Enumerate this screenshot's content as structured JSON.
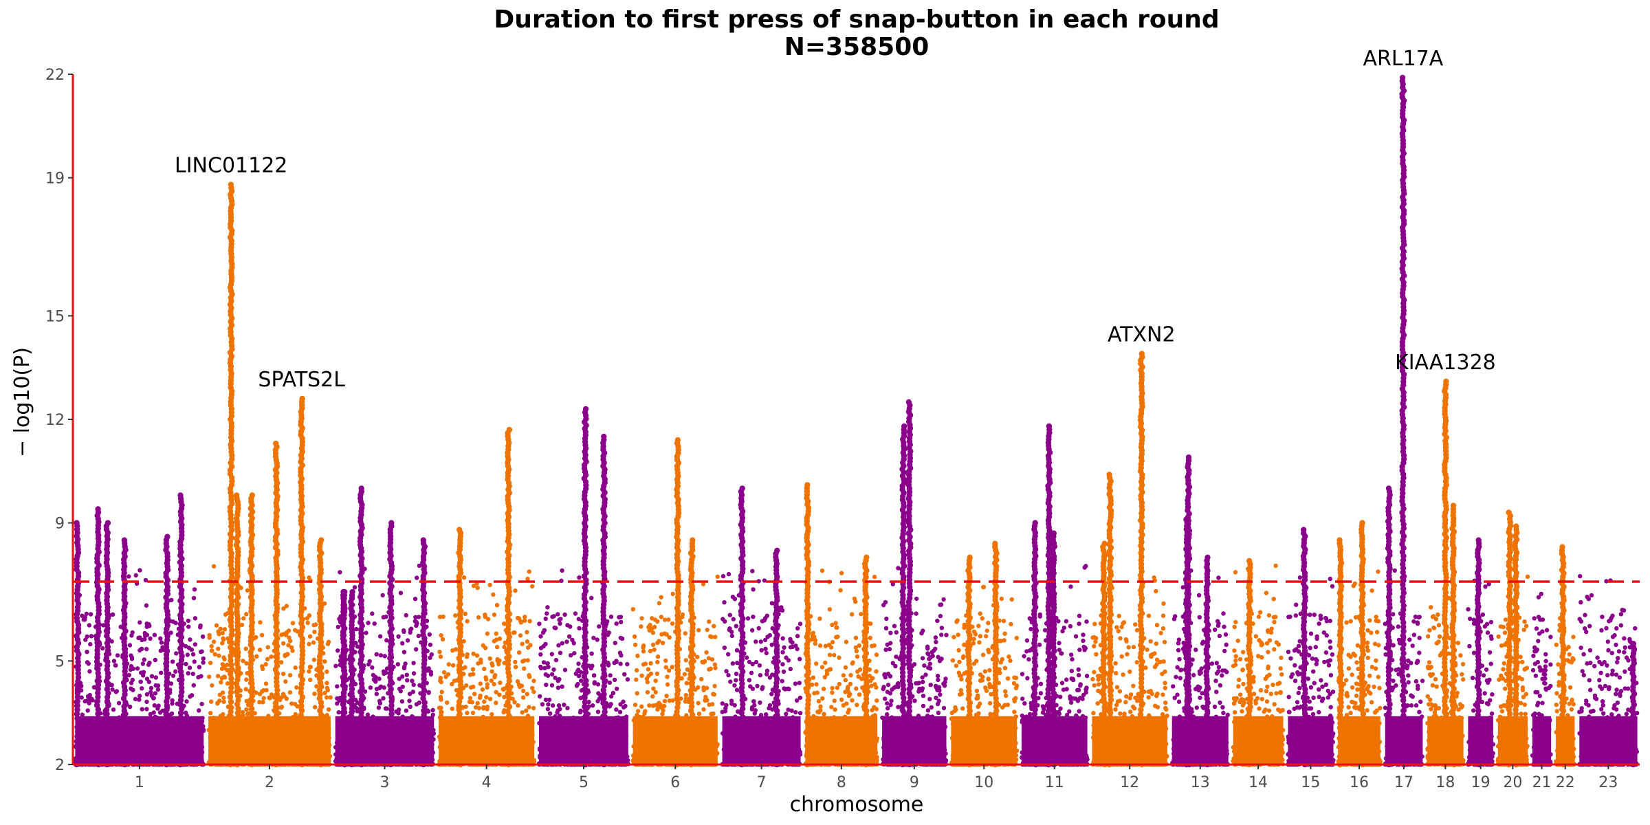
{
  "chart_data": {
    "type": "scatter",
    "subtype": "manhattan",
    "title": "Duration to first press of snap-button in each round",
    "subtitle": "N=358500",
    "xlabel": "chromosome",
    "ylabel": "− log10(P)",
    "ylim": [
      2,
      22
    ],
    "yticks": [
      2,
      5,
      9,
      12,
      15,
      19,
      22
    ],
    "significance_threshold": 7.3,
    "colors": {
      "odd": "#8B008B",
      "even": "#EE7300",
      "threshold": "#ee1111",
      "axis": "#ee1111"
    },
    "chromosomes": [
      {
        "label": "1",
        "start": 0.0,
        "end": 8.5
      },
      {
        "label": "2",
        "start": 8.5,
        "end": 16.6
      },
      {
        "label": "3",
        "start": 16.6,
        "end": 23.2
      },
      {
        "label": "4",
        "start": 23.2,
        "end": 29.6
      },
      {
        "label": "5",
        "start": 29.6,
        "end": 35.6
      },
      {
        "label": "6",
        "start": 35.6,
        "end": 41.3
      },
      {
        "label": "7",
        "start": 41.3,
        "end": 46.6
      },
      {
        "label": "8",
        "start": 46.6,
        "end": 51.5
      },
      {
        "label": "9",
        "start": 51.5,
        "end": 55.9
      },
      {
        "label": "10",
        "start": 55.9,
        "end": 60.4
      },
      {
        "label": "11",
        "start": 60.4,
        "end": 64.9
      },
      {
        "label": "12",
        "start": 64.9,
        "end": 70.0
      },
      {
        "label": "13",
        "start": 70.0,
        "end": 73.9
      },
      {
        "label": "14",
        "start": 73.9,
        "end": 77.4
      },
      {
        "label": "15",
        "start": 77.4,
        "end": 80.6
      },
      {
        "label": "16",
        "start": 80.6,
        "end": 83.6
      },
      {
        "label": "17",
        "start": 83.6,
        "end": 86.3
      },
      {
        "label": "18",
        "start": 86.3,
        "end": 88.9
      },
      {
        "label": "19",
        "start": 88.9,
        "end": 90.8
      },
      {
        "label": "20",
        "start": 90.8,
        "end": 93.0
      },
      {
        "label": "21",
        "start": 93.0,
        "end": 94.5
      },
      {
        "label": "22",
        "start": 94.5,
        "end": 96.0
      },
      {
        "label": "23",
        "start": 96.0,
        "end": 100.0
      }
    ],
    "peaks": [
      {
        "chr": "1",
        "pos": 0.3,
        "p": 9.0
      },
      {
        "chr": "1",
        "pos": 1.6,
        "p": 9.4
      },
      {
        "chr": "1",
        "pos": 2.2,
        "p": 9.0
      },
      {
        "chr": "1",
        "pos": 3.3,
        "p": 8.5
      },
      {
        "chr": "1",
        "pos": 6.0,
        "p": 8.6
      },
      {
        "chr": "1",
        "pos": 6.9,
        "p": 9.8
      },
      {
        "chr": "2",
        "pos": 10.1,
        "p": 18.8
      },
      {
        "chr": "2",
        "pos": 10.5,
        "p": 9.8
      },
      {
        "chr": "2",
        "pos": 11.4,
        "p": 9.8
      },
      {
        "chr": "2",
        "pos": 13.0,
        "p": 11.3
      },
      {
        "chr": "2",
        "pos": 14.6,
        "p": 12.6
      },
      {
        "chr": "2",
        "pos": 15.8,
        "p": 8.5
      },
      {
        "chr": "3",
        "pos": 17.3,
        "p": 7.0
      },
      {
        "chr": "3",
        "pos": 17.8,
        "p": 7.0
      },
      {
        "chr": "3",
        "pos": 17.3,
        "p": 7.0
      },
      {
        "chr": "3",
        "pos": 18.4,
        "p": 10.0
      },
      {
        "chr": "3",
        "pos": 20.3,
        "p": 9.0
      },
      {
        "chr": "3",
        "pos": 22.4,
        "p": 8.5
      },
      {
        "chr": "4",
        "pos": 24.7,
        "p": 8.8
      },
      {
        "chr": "4",
        "pos": 27.8,
        "p": 11.7
      },
      {
        "chr": "5",
        "pos": 32.7,
        "p": 12.3
      },
      {
        "chr": "5",
        "pos": 33.9,
        "p": 11.5
      },
      {
        "chr": "6",
        "pos": 38.6,
        "p": 11.4
      },
      {
        "chr": "6",
        "pos": 39.5,
        "p": 8.5
      },
      {
        "chr": "7",
        "pos": 42.7,
        "p": 10.0
      },
      {
        "chr": "7",
        "pos": 44.9,
        "p": 8.2
      },
      {
        "chr": "8",
        "pos": 46.9,
        "p": 10.1
      },
      {
        "chr": "8",
        "pos": 50.6,
        "p": 8.0
      },
      {
        "chr": "9",
        "pos": 53.4,
        "p": 12.5
      },
      {
        "chr": "9",
        "pos": 53.0,
        "p": 11.8
      },
      {
        "chr": "10",
        "pos": 57.2,
        "p": 8.0
      },
      {
        "chr": "10",
        "pos": 58.9,
        "p": 8.4
      },
      {
        "chr": "11",
        "pos": 61.4,
        "p": 9.0
      },
      {
        "chr": "11",
        "pos": 62.3,
        "p": 11.8
      },
      {
        "chr": "11",
        "pos": 62.6,
        "p": 8.7
      },
      {
        "chr": "12",
        "pos": 65.8,
        "p": 8.4
      },
      {
        "chr": "12",
        "pos": 66.2,
        "p": 10.4
      },
      {
        "chr": "12",
        "pos": 68.2,
        "p": 13.9
      },
      {
        "chr": "13",
        "pos": 71.2,
        "p": 10.9
      },
      {
        "chr": "13",
        "pos": 71.1,
        "p": 9.1
      },
      {
        "chr": "13",
        "pos": 72.4,
        "p": 8.0
      },
      {
        "chr": "14",
        "pos": 75.1,
        "p": 7.9
      },
      {
        "chr": "15",
        "pos": 78.6,
        "p": 8.8
      },
      {
        "chr": "16",
        "pos": 80.9,
        "p": 8.5
      },
      {
        "chr": "16",
        "pos": 82.3,
        "p": 9.0
      },
      {
        "chr": "17",
        "pos": 84.0,
        "p": 10.0
      },
      {
        "chr": "17",
        "pos": 84.9,
        "p": 21.9
      },
      {
        "chr": "18",
        "pos": 87.6,
        "p": 13.1
      },
      {
        "chr": "18",
        "pos": 88.1,
        "p": 9.5
      },
      {
        "chr": "19",
        "pos": 89.7,
        "p": 8.5
      },
      {
        "chr": "20",
        "pos": 91.7,
        "p": 9.3
      },
      {
        "chr": "20",
        "pos": 92.1,
        "p": 8.9
      },
      {
        "chr": "22",
        "pos": 95.1,
        "p": 8.3
      },
      {
        "chr": "23",
        "pos": 99.6,
        "p": 5.5
      }
    ],
    "annotations": [
      {
        "label": "LINC01122",
        "pos": 10.1,
        "p": 18.8
      },
      {
        "label": "SPATS2L",
        "pos": 14.6,
        "p": 12.6
      },
      {
        "label": "ATXN2",
        "pos": 68.2,
        "p": 13.9
      },
      {
        "label": "ARL17A",
        "pos": 84.9,
        "p": 21.9
      },
      {
        "label": "KIAA1328",
        "pos": 87.6,
        "p": 13.1
      }
    ]
  }
}
